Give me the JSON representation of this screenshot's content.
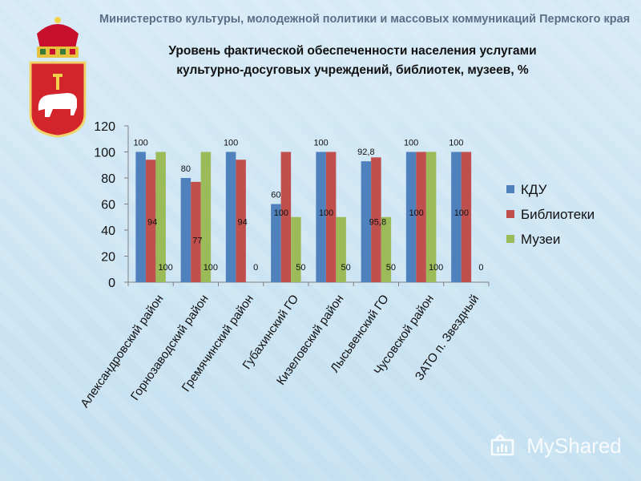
{
  "header": {
    "ministry": "Министерство культуры, молодежной политики и массовых коммуникаций Пермского края",
    "title_line1": "Уровень фактической обеспеченности населения услугами",
    "title_line2": "культурно-досуговых учреждений, библиотек, музеев, %"
  },
  "watermark": {
    "text": "MyShared"
  },
  "colors": {
    "kdu": "#4f81bd",
    "libraries": "#c0504d",
    "museums": "#9bbb59"
  },
  "chart_data": {
    "type": "bar",
    "title": "Уровень фактической обеспеченности населения услугами культурно-досуговых учреждений, библиотек, музеев, %",
    "categories": [
      "Александровский район",
      "Горнозаводский район",
      "Гремячинский район",
      "Губахинский ГО",
      "Кизеловский район",
      "Лысьвенский ГО",
      "Чусовской район",
      "ЗАТО п. Звездный"
    ],
    "series": [
      {
        "name": "КДУ",
        "values": [
          100,
          80,
          100,
          60,
          100,
          92.8,
          100,
          100
        ],
        "labels": [
          "100",
          "80",
          "100",
          "60",
          "100",
          "92,8",
          "100",
          "100"
        ]
      },
      {
        "name": "Библиотеки",
        "values": [
          94,
          77,
          94,
          100,
          100,
          95.8,
          100,
          100
        ],
        "labels": [
          "94",
          "77",
          "94",
          "100",
          "100",
          "95,8",
          "100",
          "100"
        ]
      },
      {
        "name": "Музеи",
        "values": [
          100,
          100,
          0,
          50,
          50,
          50,
          100,
          0
        ],
        "labels": [
          "100",
          "100",
          "0",
          "50",
          "50",
          "50",
          "100",
          "0"
        ]
      }
    ],
    "ylim": [
      0,
      120
    ],
    "yticks": [
      0,
      20,
      40,
      60,
      80,
      100,
      120
    ],
    "legend": "right",
    "grid": false
  }
}
